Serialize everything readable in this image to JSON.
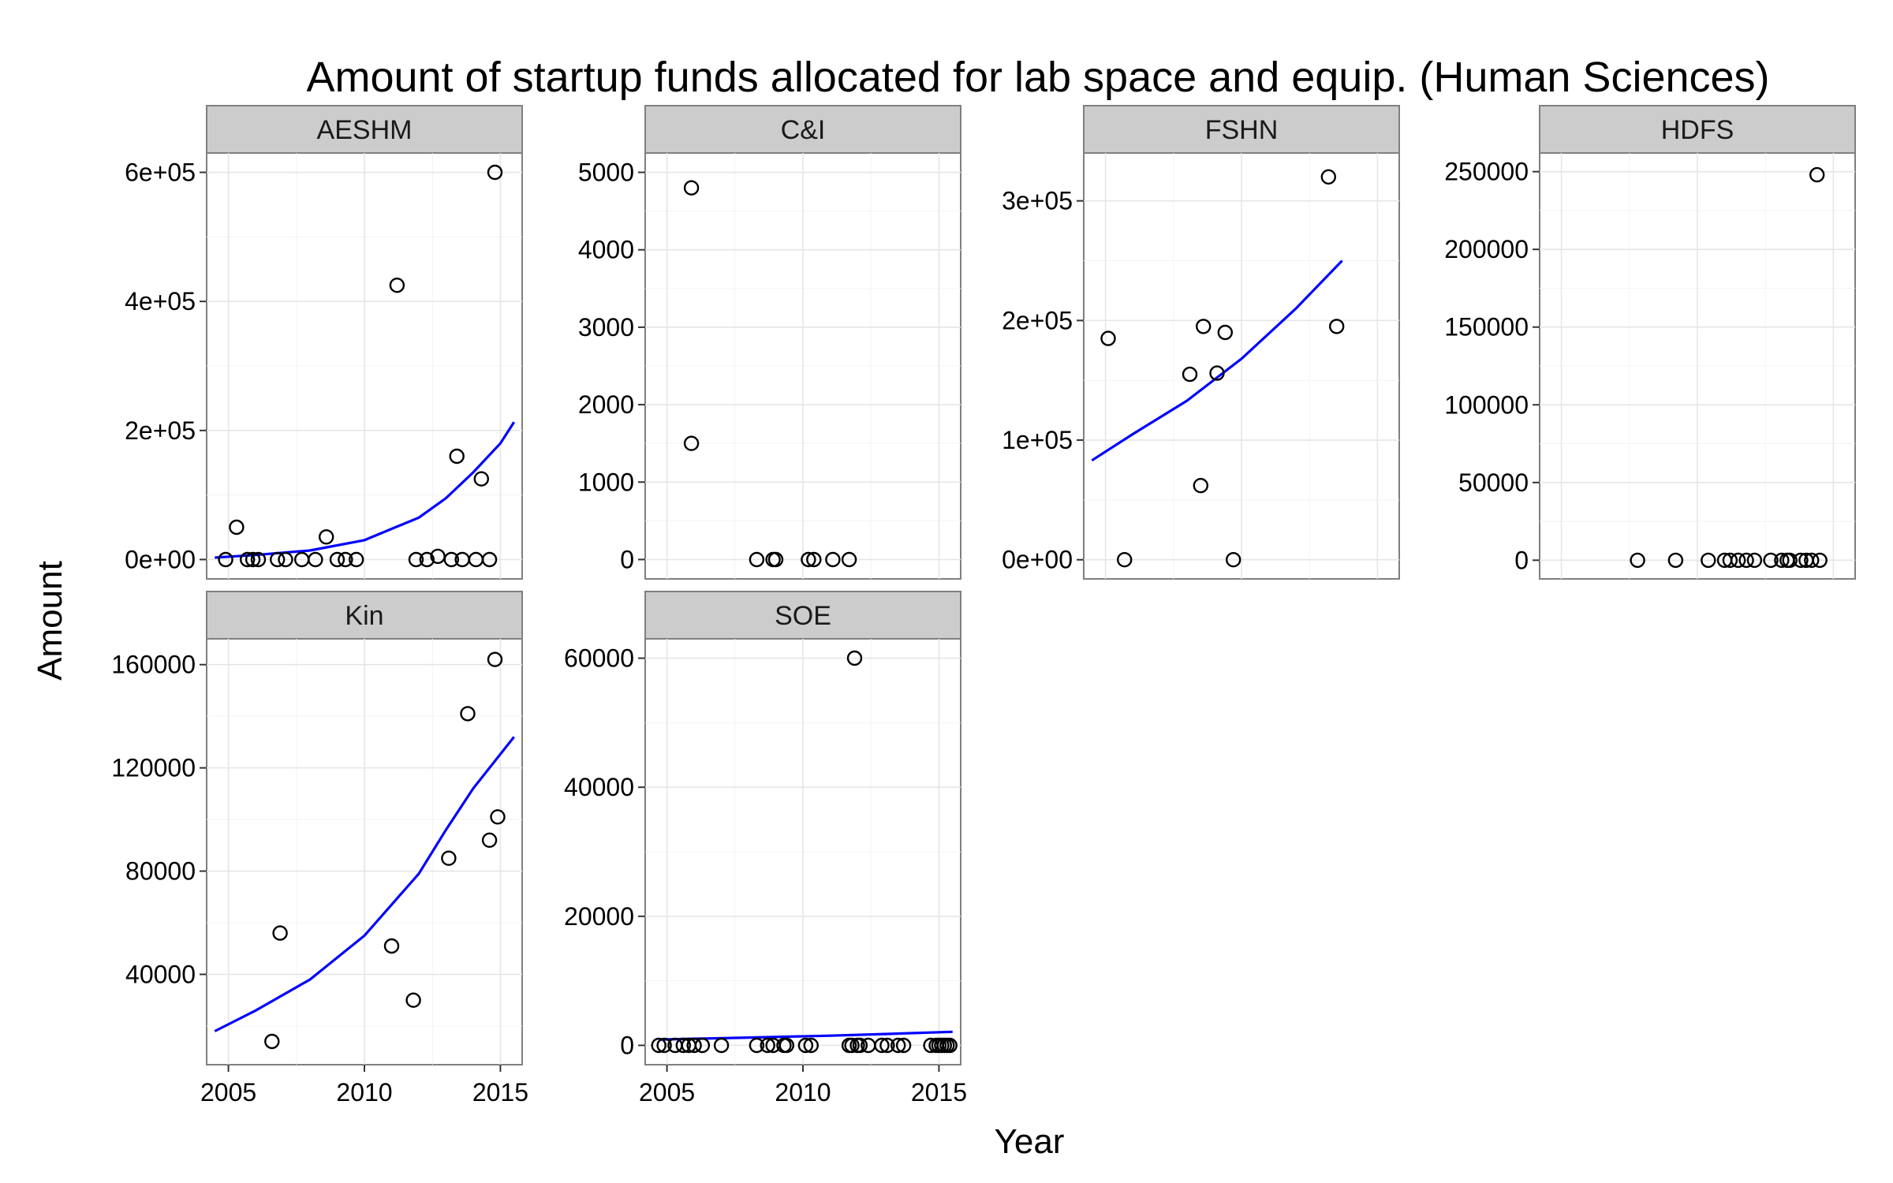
{
  "chart_data": {
    "type": "scatter",
    "title": "Amount of startup funds allocated for lab space and equip. (Human Sciences)",
    "xlabel": "Year",
    "ylabel": "Amount",
    "xlim": [
      2004.2,
      2015.8
    ],
    "x_ticks": [
      2005,
      2010,
      2015
    ],
    "x_tick_labels": [
      "2005",
      "2010",
      "2015"
    ],
    "trend_color": "#0000ff",
    "point_color": "#000000",
    "panels": [
      {
        "name": "AESHM",
        "ylim": [
          -30000,
          630000
        ],
        "y_ticks": [
          0,
          200000,
          400000,
          600000
        ],
        "y_tick_labels": [
          "0e+00",
          "2e+05",
          "4e+05",
          "6e+05"
        ],
        "show_x_axis": false,
        "points": [
          [
            2004.9,
            0
          ],
          [
            2005.3,
            50000
          ],
          [
            2005.7,
            0
          ],
          [
            2005.9,
            0
          ],
          [
            2006.1,
            0
          ],
          [
            2006.8,
            0
          ],
          [
            2007.1,
            0
          ],
          [
            2007.7,
            0
          ],
          [
            2008.2,
            0
          ],
          [
            2008.6,
            35000
          ],
          [
            2009.0,
            0
          ],
          [
            2009.3,
            0
          ],
          [
            2009.7,
            0
          ],
          [
            2011.2,
            425000
          ],
          [
            2011.9,
            0
          ],
          [
            2012.3,
            0
          ],
          [
            2012.7,
            5000
          ],
          [
            2013.2,
            0
          ],
          [
            2013.4,
            160000
          ],
          [
            2013.6,
            0
          ],
          [
            2014.1,
            0
          ],
          [
            2014.3,
            125000
          ],
          [
            2014.6,
            0
          ],
          [
            2014.8,
            600000
          ]
        ],
        "trend": [
          [
            2004.5,
            3000
          ],
          [
            2006,
            7000
          ],
          [
            2008,
            14000
          ],
          [
            2010,
            30000
          ],
          [
            2012,
            65000
          ],
          [
            2013,
            95000
          ],
          [
            2014,
            135000
          ],
          [
            2015,
            180000
          ],
          [
            2015.5,
            213000
          ]
        ]
      },
      {
        "name": "C&I",
        "ylim": [
          -250,
          5250
        ],
        "y_ticks": [
          0,
          1000,
          2000,
          3000,
          4000,
          5000
        ],
        "y_tick_labels": [
          "0",
          "1000",
          "2000",
          "3000",
          "4000",
          "5000"
        ],
        "show_x_axis": false,
        "points": [
          [
            2005.9,
            4800
          ],
          [
            2005.9,
            1500
          ],
          [
            2008.3,
            0
          ],
          [
            2008.9,
            0
          ],
          [
            2009.0,
            0
          ],
          [
            2010.2,
            0
          ],
          [
            2010.4,
            0
          ],
          [
            2011.1,
            0
          ],
          [
            2011.7,
            0
          ]
        ],
        "trend": []
      },
      {
        "name": "FSHN",
        "ylim": [
          -16000,
          340000
        ],
        "y_ticks": [
          0,
          100000,
          200000,
          300000
        ],
        "y_tick_labels": [
          "0e+00",
          "1e+05",
          "2e+05",
          "3e+05"
        ],
        "show_x_axis": false,
        "points": [
          [
            2005.1,
            185000
          ],
          [
            2005.7,
            0
          ],
          [
            2008.1,
            155000
          ],
          [
            2008.5,
            62000
          ],
          [
            2008.6,
            195000
          ],
          [
            2009.1,
            156000
          ],
          [
            2009.4,
            190000
          ],
          [
            2009.7,
            0
          ],
          [
            2013.2,
            320000
          ],
          [
            2013.5,
            195000
          ]
        ],
        "trend": [
          [
            2004.5,
            83000
          ],
          [
            2006,
            105000
          ],
          [
            2008,
            133000
          ],
          [
            2010,
            168000
          ],
          [
            2012,
            210000
          ],
          [
            2013.7,
            250000
          ]
        ]
      },
      {
        "name": "HDFS",
        "ylim": [
          -12000,
          262000
        ],
        "y_ticks": [
          0,
          50000,
          100000,
          150000,
          200000,
          250000
        ],
        "y_tick_labels": [
          "0",
          "50000",
          "100000",
          "150000",
          "200000",
          "250000"
        ],
        "show_x_axis": false,
        "points": [
          [
            2007.8,
            0
          ],
          [
            2009.2,
            0
          ],
          [
            2010.4,
            0
          ],
          [
            2011.0,
            0
          ],
          [
            2011.2,
            0
          ],
          [
            2011.5,
            0
          ],
          [
            2011.8,
            0
          ],
          [
            2012.1,
            0
          ],
          [
            2012.7,
            0
          ],
          [
            2013.1,
            0
          ],
          [
            2013.3,
            0
          ],
          [
            2013.4,
            0
          ],
          [
            2013.8,
            0
          ],
          [
            2014.0,
            0
          ],
          [
            2014.2,
            0
          ],
          [
            2014.4,
            248000
          ],
          [
            2014.5,
            0
          ]
        ],
        "trend": []
      },
      {
        "name": "Kin",
        "ylim": [
          5000,
          170000
        ],
        "y_ticks": [
          40000,
          80000,
          120000,
          160000
        ],
        "y_tick_labels": [
          "40000",
          "80000",
          "120000",
          "160000"
        ],
        "show_x_axis": true,
        "points": [
          [
            2006.6,
            14000
          ],
          [
            2006.9,
            56000
          ],
          [
            2011.0,
            51000
          ],
          [
            2011.8,
            30000
          ],
          [
            2013.1,
            85000
          ],
          [
            2013.8,
            141000
          ],
          [
            2014.6,
            92000
          ],
          [
            2014.8,
            162000
          ],
          [
            2014.9,
            101000
          ]
        ],
        "trend": [
          [
            2004.5,
            18000
          ],
          [
            2006,
            26000
          ],
          [
            2008,
            38000
          ],
          [
            2010,
            55000
          ],
          [
            2012,
            79000
          ],
          [
            2013,
            96000
          ],
          [
            2014,
            112000
          ],
          [
            2015.5,
            132000
          ]
        ]
      },
      {
        "name": "SOE",
        "ylim": [
          -3000,
          63000
        ],
        "y_ticks": [
          0,
          20000,
          40000,
          60000
        ],
        "y_tick_labels": [
          "0",
          "20000",
          "40000",
          "60000"
        ],
        "show_x_axis": true,
        "points": [
          [
            2004.7,
            0
          ],
          [
            2004.9,
            0
          ],
          [
            2005.3,
            0
          ],
          [
            2005.6,
            0
          ],
          [
            2005.8,
            0
          ],
          [
            2006.0,
            0
          ],
          [
            2006.3,
            0
          ],
          [
            2007.0,
            0
          ],
          [
            2008.3,
            0
          ],
          [
            2008.7,
            0
          ],
          [
            2008.9,
            0
          ],
          [
            2009.3,
            0
          ],
          [
            2009.4,
            0
          ],
          [
            2010.1,
            0
          ],
          [
            2010.3,
            0
          ],
          [
            2011.7,
            0
          ],
          [
            2011.8,
            0
          ],
          [
            2011.9,
            60000
          ],
          [
            2012.0,
            0
          ],
          [
            2012.1,
            0
          ],
          [
            2012.4,
            0
          ],
          [
            2012.9,
            0
          ],
          [
            2013.1,
            0
          ],
          [
            2013.5,
            0
          ],
          [
            2013.7,
            0
          ],
          [
            2014.7,
            0
          ],
          [
            2014.9,
            0
          ],
          [
            2015.0,
            0
          ],
          [
            2015.1,
            0
          ],
          [
            2015.2,
            0
          ],
          [
            2015.3,
            0
          ],
          [
            2015.4,
            0
          ]
        ],
        "trend": [
          [
            2004.7,
            900
          ],
          [
            2008,
            1200
          ],
          [
            2011,
            1500
          ],
          [
            2013,
            1750
          ],
          [
            2015.5,
            2100
          ]
        ]
      }
    ]
  }
}
